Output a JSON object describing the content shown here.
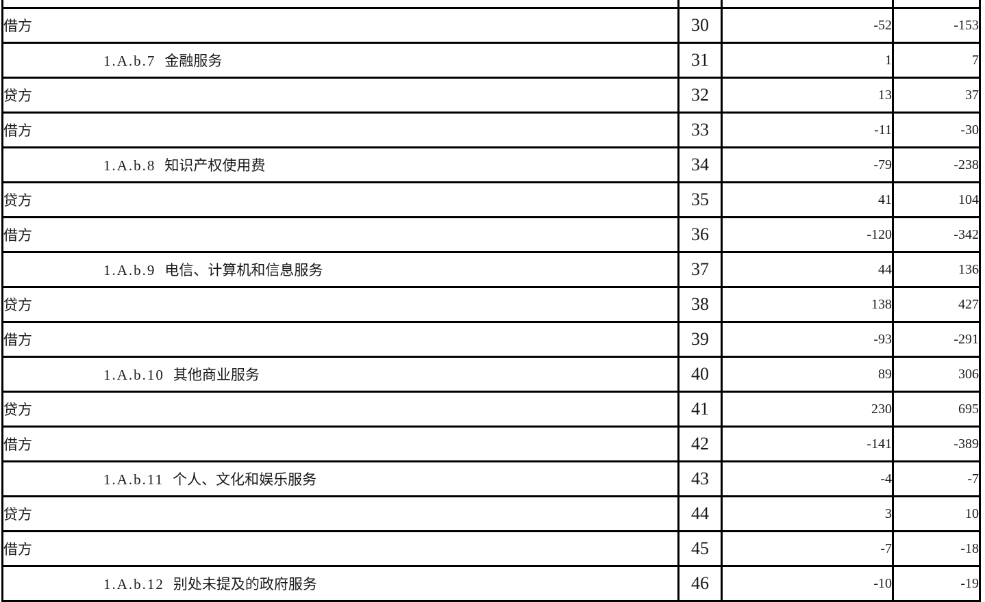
{
  "table": {
    "rows": [
      {
        "code": "",
        "name": "借方",
        "num": "30",
        "value1": "-52",
        "value2": "-153",
        "indent": "entry"
      },
      {
        "code": "1.A.b.7",
        "name": "金融服务",
        "num": "31",
        "value1": "1",
        "value2": "7",
        "indent": "item"
      },
      {
        "code": "",
        "name": "贷方",
        "num": "32",
        "value1": "13",
        "value2": "37",
        "indent": "entry"
      },
      {
        "code": "",
        "name": "借方",
        "num": "33",
        "value1": "-11",
        "value2": "-30",
        "indent": "entry"
      },
      {
        "code": "1.A.b.8",
        "name": "知识产权使用费",
        "num": "34",
        "value1": "-79",
        "value2": "-238",
        "indent": "item"
      },
      {
        "code": "",
        "name": "贷方",
        "num": "35",
        "value1": "41",
        "value2": "104",
        "indent": "entry"
      },
      {
        "code": "",
        "name": "借方",
        "num": "36",
        "value1": "-120",
        "value2": "-342",
        "indent": "entry"
      },
      {
        "code": "1.A.b.9",
        "name": "电信、计算机和信息服务",
        "num": "37",
        "value1": "44",
        "value2": "136",
        "indent": "item"
      },
      {
        "code": "",
        "name": "贷方",
        "num": "38",
        "value1": "138",
        "value2": "427",
        "indent": "entry"
      },
      {
        "code": "",
        "name": "借方",
        "num": "39",
        "value1": "-93",
        "value2": "-291",
        "indent": "entry"
      },
      {
        "code": "1.A.b.10",
        "name": "其他商业服务",
        "num": "40",
        "value1": "89",
        "value2": "306",
        "indent": "item"
      },
      {
        "code": "",
        "name": "贷方",
        "num": "41",
        "value1": "230",
        "value2": "695",
        "indent": "entry"
      },
      {
        "code": "",
        "name": "借方",
        "num": "42",
        "value1": "-141",
        "value2": "-389",
        "indent": "entry"
      },
      {
        "code": "1.A.b.11",
        "name": "个人、文化和娱乐服务",
        "num": "43",
        "value1": "-4",
        "value2": "-7",
        "indent": "item"
      },
      {
        "code": "",
        "name": "贷方",
        "num": "44",
        "value1": "3",
        "value2": "10",
        "indent": "entry"
      },
      {
        "code": "",
        "name": "借方",
        "num": "45",
        "value1": "-7",
        "value2": "-18",
        "indent": "entry"
      },
      {
        "code": "1.A.b.12",
        "name": "别处未提及的政府服务",
        "num": "46",
        "value1": "-10",
        "value2": "-19",
        "indent": "item"
      }
    ]
  }
}
